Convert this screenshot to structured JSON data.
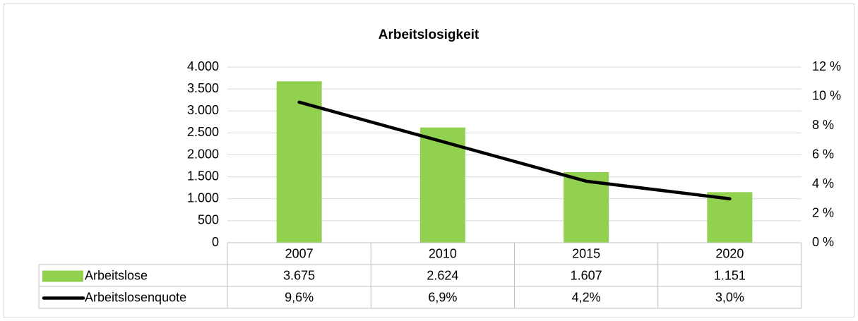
{
  "chart_data": {
    "type": "bar",
    "title": "Arbeitslosigkeit",
    "categories": [
      "2007",
      "2010",
      "2015",
      "2020"
    ],
    "series": [
      {
        "name": "Arbeitslose",
        "type": "bar",
        "color": "#92d050",
        "values": [
          3675,
          2624,
          1607,
          1151
        ],
        "value_labels": [
          "3.675",
          "2.624",
          "1.607",
          "1.151"
        ]
      },
      {
        "name": "Arbeitslosenquote",
        "type": "line",
        "color": "#000000",
        "axis": "y2",
        "values": [
          9.6,
          6.9,
          4.2,
          3.0
        ],
        "value_labels": [
          "9,6%",
          "6,9%",
          "4,2%",
          "3,0%"
        ]
      }
    ],
    "ylim": [
      0,
      4000
    ],
    "yticks": [
      0,
      500,
      {
        "value": 1000,
        "label": "1.000"
      },
      {
        "value": 1500,
        "label": "1.500"
      },
      {
        "value": 2000,
        "label": "2.000"
      },
      {
        "value": 2500,
        "label": "2.500"
      },
      {
        "value": 3000,
        "label": "3.000"
      },
      {
        "value": 3500,
        "label": "3.500"
      },
      {
        "value": 4000,
        "label": "4.000"
      }
    ],
    "y2lim": [
      0,
      12
    ],
    "y2ticks": [
      {
        "value": 0,
        "label": "0 %"
      },
      {
        "value": 2,
        "label": "2 %"
      },
      {
        "value": 4,
        "label": "4 %"
      },
      {
        "value": 6,
        "label": "6 %"
      },
      {
        "value": 8,
        "label": "8 %"
      },
      {
        "value": 10,
        "label": "10 %"
      },
      {
        "value": 12,
        "label": "12 %"
      }
    ],
    "grid": true,
    "data_table": true
  }
}
